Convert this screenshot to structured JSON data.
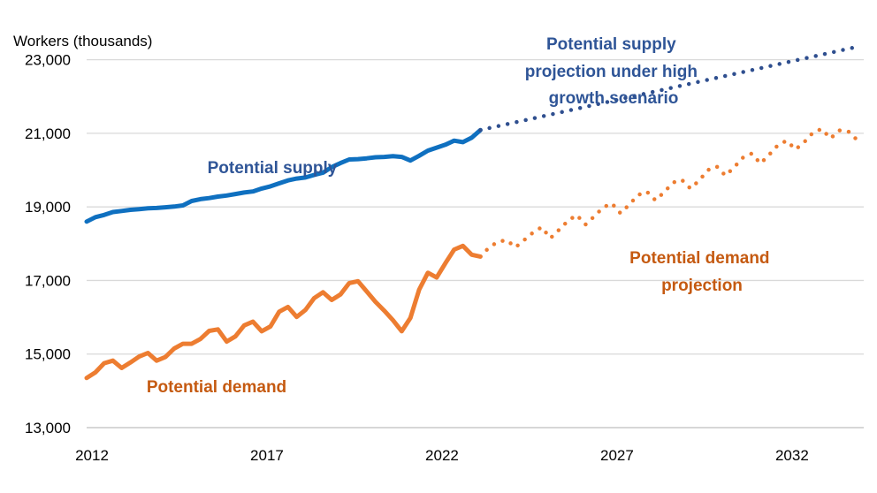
{
  "chart_data": {
    "type": "line",
    "ylabel": "Workers (thousands)",
    "xlim": [
      2012,
      2034.2
    ],
    "ylim": [
      13000,
      24000
    ],
    "yticks": [
      13000,
      15000,
      17000,
      19000,
      21000,
      23000
    ],
    "ytick_labels": [
      "13,000",
      "15,000",
      "17,000",
      "19,000",
      "21,000",
      "23,000"
    ],
    "xticks": [
      2012,
      2017,
      2022,
      2027,
      2032
    ],
    "xtick_labels": [
      "2012",
      "2017",
      "2022",
      "2027",
      "2032"
    ],
    "grid": "horizontal",
    "colors": {
      "supply": "#0F70C0",
      "supply_projection": "#2F4F8F",
      "demand": "#ED7D31",
      "demand_label": "#C55A11",
      "grid": "#D9D9D9",
      "axis": "#BFBFBF"
    },
    "series": [
      {
        "key": "supply",
        "style": "solid",
        "x": [
          2012.0,
          2012.25,
          2012.5,
          2012.75,
          2013.0,
          2013.25,
          2013.5,
          2013.75,
          2014.0,
          2014.25,
          2014.5,
          2014.75,
          2015.0,
          2015.25,
          2015.5,
          2015.75,
          2016.0,
          2016.25,
          2016.5,
          2016.75,
          2017.0,
          2017.25,
          2017.5,
          2017.75,
          2018.0,
          2018.25,
          2018.5,
          2018.75,
          2019.0,
          2019.25,
          2019.5,
          2019.75,
          2020.0,
          2020.25,
          2020.5,
          2020.75,
          2021.0,
          2021.25,
          2021.5,
          2021.75,
          2022.0,
          2022.25,
          2022.5,
          2022.75,
          2023.0,
          2023.25
        ],
        "values": [
          18600,
          18720,
          18780,
          18860,
          18890,
          18920,
          18940,
          18960,
          18970,
          18990,
          19010,
          19040,
          19160,
          19210,
          19240,
          19280,
          19310,
          19350,
          19390,
          19420,
          19500,
          19560,
          19640,
          19720,
          19770,
          19800,
          19870,
          19930,
          20080,
          20190,
          20290,
          20300,
          20320,
          20350,
          20360,
          20380,
          20360,
          20260,
          20390,
          20530,
          20610,
          20690,
          20800,
          20760,
          20880,
          21090
        ]
      },
      {
        "key": "supply_projection",
        "style": "dotted",
        "x": [
          2023.25,
          2034.0
        ],
        "values": [
          21090,
          23350
        ]
      },
      {
        "key": "demand",
        "style": "solid",
        "x": [
          2012.0,
          2012.25,
          2012.5,
          2012.75,
          2013.0,
          2013.25,
          2013.5,
          2013.75,
          2014.0,
          2014.25,
          2014.5,
          2014.75,
          2015.0,
          2015.25,
          2015.5,
          2015.75,
          2016.0,
          2016.25,
          2016.5,
          2016.75,
          2017.0,
          2017.25,
          2017.5,
          2017.75,
          2018.0,
          2018.25,
          2018.5,
          2018.75,
          2019.0,
          2019.25,
          2019.5,
          2019.75,
          2020.0,
          2020.25,
          2020.5,
          2020.75,
          2021.0,
          2021.25,
          2021.5,
          2021.75,
          2022.0,
          2022.25,
          2022.5,
          2022.75,
          2023.0,
          2023.25
        ],
        "values": [
          14350,
          14500,
          14750,
          14820,
          14620,
          14770,
          14930,
          15030,
          14820,
          14920,
          15150,
          15280,
          15280,
          15410,
          15630,
          15670,
          15340,
          15480,
          15780,
          15880,
          15620,
          15750,
          16150,
          16280,
          16010,
          16200,
          16520,
          16680,
          16470,
          16620,
          16930,
          16980,
          16700,
          16420,
          16180,
          15920,
          15620,
          15980,
          16750,
          17210,
          17080,
          17470,
          17840,
          17940,
          17700,
          17650
        ]
      },
      {
        "key": "demand_projection",
        "style": "dotted",
        "x": [
          2023.25,
          2023.5,
          2023.75,
          2024.0,
          2024.25,
          2024.5,
          2024.75,
          2025.0,
          2025.25,
          2025.5,
          2025.75,
          2026.0,
          2026.25,
          2026.5,
          2026.75,
          2027.0,
          2027.25,
          2027.5,
          2027.75,
          2028.0,
          2028.25,
          2028.5,
          2028.75,
          2029.0,
          2029.25,
          2029.5,
          2029.75,
          2030.0,
          2030.25,
          2030.5,
          2030.75,
          2031.0,
          2031.25,
          2031.5,
          2031.75,
          2032.0,
          2032.25,
          2032.5,
          2032.75,
          2033.0,
          2033.25,
          2033.5,
          2033.75,
          2034.0
        ],
        "values": [
          17650,
          17900,
          18050,
          18100,
          17900,
          18100,
          18300,
          18450,
          18150,
          18380,
          18620,
          18780,
          18520,
          18740,
          18980,
          19100,
          18830,
          19060,
          19320,
          19420,
          19180,
          19400,
          19660,
          19740,
          19500,
          19720,
          20000,
          20100,
          19850,
          20080,
          20340,
          20450,
          20180,
          20420,
          20680,
          20800,
          20560,
          20760,
          21020,
          21120,
          20860,
          21080,
          21060,
          20830
        ]
      }
    ],
    "annotations": {
      "supply_label": "Potential supply",
      "supply_projection_label": [
        "Potential supply",
        "projection under high",
        "growth scenario"
      ],
      "demand_label": "Potential demand",
      "demand_projection_label": [
        "Potential demand",
        "projection"
      ]
    }
  }
}
